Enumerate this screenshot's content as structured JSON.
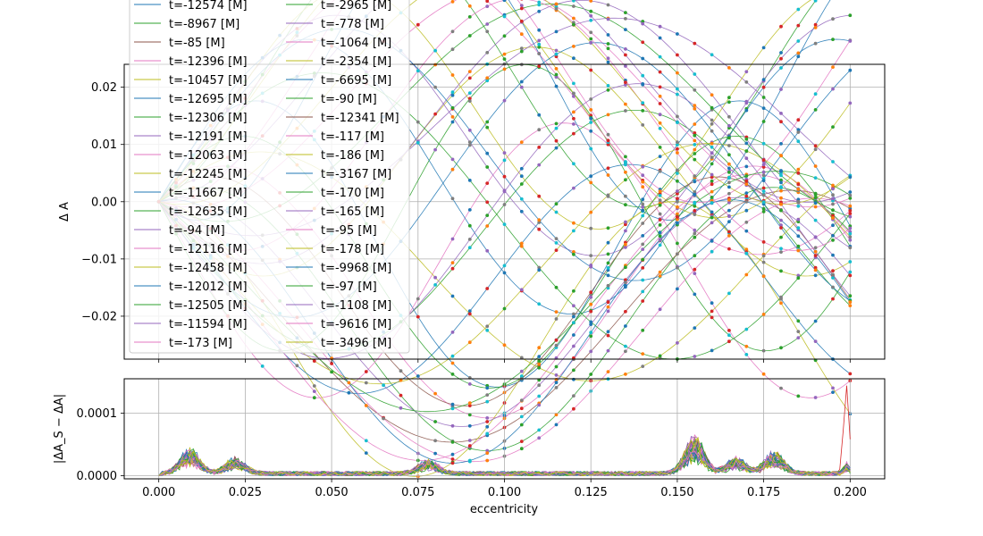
{
  "chart_data": [
    {
      "type": "line",
      "ylabel": "Δ A",
      "xlim": [
        -0.01,
        0.21
      ],
      "ylim": [
        -0.0275,
        0.024
      ],
      "xticks": [
        0.0,
        0.025,
        0.05,
        0.075,
        0.1,
        0.125,
        0.15,
        0.175,
        0.2
      ],
      "yticks": [
        -0.02,
        -0.01,
        0.0,
        0.01,
        0.02
      ],
      "ytick_labels": [
        "−0.02",
        "−0.01",
        "0.00",
        "0.01",
        "0.02"
      ],
      "grid": true,
      "legend_position": "upper-left",
      "legend_ncol": 2,
      "series_markers": "dots at sampled eccentricities",
      "series": [
        {
          "name": "t=-12574 [M]",
          "color": "#1f77b4",
          "amp": 0.025,
          "k": 45,
          "phase": 0.3
        },
        {
          "name": "t=-8967 [M]",
          "color": "#2ca02c",
          "amp": 0.023,
          "k": 38,
          "phase": 1.1
        },
        {
          "name": "t=-85 [M]",
          "color": "#8c564b",
          "amp": 0.022,
          "k": 32,
          "phase": 2.0
        },
        {
          "name": "t=-12396 [M]",
          "color": "#e377c2",
          "amp": 0.024,
          "k": 44,
          "phase": 2.7
        },
        {
          "name": "t=-10457 [M]",
          "color": "#bcbd22",
          "amp": 0.02,
          "k": 40,
          "phase": 3.5
        },
        {
          "name": "t=-12695 [M]",
          "color": "#1f77b4",
          "amp": 0.025,
          "k": 46,
          "phase": 4.2
        },
        {
          "name": "t=-12306 [M]",
          "color": "#2ca02c",
          "amp": 0.023,
          "k": 43,
          "phase": 5.0
        },
        {
          "name": "t=-12191 [M]",
          "color": "#9467bd",
          "amp": 0.021,
          "k": 42,
          "phase": 5.7
        },
        {
          "name": "t=-12063 [M]",
          "color": "#e377c2",
          "amp": 0.022,
          "k": 41,
          "phase": 0.8
        },
        {
          "name": "t=-12245 [M]",
          "color": "#bcbd22",
          "amp": 0.024,
          "k": 42,
          "phase": 1.6
        },
        {
          "name": "t=-11667 [M]",
          "color": "#1f77b4",
          "amp": 0.02,
          "k": 40,
          "phase": 2.4
        },
        {
          "name": "t=-12635 [M]",
          "color": "#2ca02c",
          "amp": 0.025,
          "k": 45,
          "phase": 3.1
        },
        {
          "name": "t=-94 [M]",
          "color": "#9467bd",
          "amp": 0.019,
          "k": 30,
          "phase": 3.9
        },
        {
          "name": "t=-12116 [M]",
          "color": "#e377c2",
          "amp": 0.023,
          "k": 41,
          "phase": 4.6
        },
        {
          "name": "t=-12458 [M]",
          "color": "#bcbd22",
          "amp": 0.021,
          "k": 44,
          "phase": 5.4
        },
        {
          "name": "t=-12012 [M]",
          "color": "#1f77b4",
          "amp": 0.024,
          "k": 41,
          "phase": 6.1
        },
        {
          "name": "t=-12505 [M]",
          "color": "#2ca02c",
          "amp": 0.022,
          "k": 44,
          "phase": 0.5
        },
        {
          "name": "t=-11594 [M]",
          "color": "#9467bd",
          "amp": 0.02,
          "k": 39,
          "phase": 1.3
        },
        {
          "name": "t=-173 [M]",
          "color": "#e377c2",
          "amp": 0.025,
          "k": 33,
          "phase": 2.2
        },
        {
          "name": "t=-2965 [M]",
          "color": "#2ca02c",
          "amp": 0.021,
          "k": 36,
          "phase": 2.9
        },
        {
          "name": "t=-778 [M]",
          "color": "#9467bd",
          "amp": 0.023,
          "k": 34,
          "phase": 3.7
        },
        {
          "name": "t=-1064 [M]",
          "color": "#e377c2",
          "amp": 0.019,
          "k": 35,
          "phase": 4.4
        },
        {
          "name": "t=-2354 [M]",
          "color": "#bcbd22",
          "amp": 0.024,
          "k": 36,
          "phase": 5.2
        },
        {
          "name": "t=-6695 [M]",
          "color": "#1f77b4",
          "amp": 0.022,
          "k": 37,
          "phase": 5.9
        },
        {
          "name": "t=-90 [M]",
          "color": "#2ca02c",
          "amp": 0.025,
          "k": 31,
          "phase": 0.1
        },
        {
          "name": "t=-12341 [M]",
          "color": "#8c564b",
          "amp": 0.02,
          "k": 43,
          "phase": 0.9
        },
        {
          "name": "t=-117 [M]",
          "color": "#e377c2",
          "amp": 0.023,
          "k": 32,
          "phase": 1.8
        },
        {
          "name": "t=-186 [M]",
          "color": "#bcbd22",
          "amp": 0.021,
          "k": 33,
          "phase": 2.6
        },
        {
          "name": "t=-3167 [M]",
          "color": "#1f77b4",
          "amp": 0.024,
          "k": 36,
          "phase": 3.3
        },
        {
          "name": "t=-170 [M]",
          "color": "#2ca02c",
          "amp": 0.019,
          "k": 33,
          "phase": 4.1
        },
        {
          "name": "t=-165 [M]",
          "color": "#9467bd",
          "amp": 0.022,
          "k": 33,
          "phase": 4.8
        },
        {
          "name": "t=-95 [M]",
          "color": "#e377c2",
          "amp": 0.025,
          "k": 31,
          "phase": 5.6
        },
        {
          "name": "t=-178 [M]",
          "color": "#bcbd22",
          "amp": 0.02,
          "k": 33,
          "phase": 0.6
        },
        {
          "name": "t=-9968 [M]",
          "color": "#1f77b4",
          "amp": 0.023,
          "k": 39,
          "phase": 1.4
        },
        {
          "name": "t=-97 [M]",
          "color": "#2ca02c",
          "amp": 0.021,
          "k": 31,
          "phase": 2.3
        },
        {
          "name": "t=-1108 [M]",
          "color": "#9467bd",
          "amp": 0.024,
          "k": 35,
          "phase": 3.0
        },
        {
          "name": "t=-9616 [M]",
          "color": "#e377c2",
          "amp": 0.022,
          "k": 39,
          "phase": 3.8
        },
        {
          "name": "t=-3496 [M]",
          "color": "#bcbd22",
          "amp": 0.02,
          "k": 36,
          "phase": 4.5
        }
      ]
    },
    {
      "type": "line",
      "xlabel": "eccentricity",
      "ylabel": "|ΔA_S − ΔA|",
      "xlim": [
        -0.01,
        0.21
      ],
      "ylim": [
        -5e-06,
        0.000155
      ],
      "xticks": [
        0.0,
        0.025,
        0.05,
        0.075,
        0.1,
        0.125,
        0.15,
        0.175,
        0.2
      ],
      "xtick_labels": [
        "0.000",
        "0.025",
        "0.050",
        "0.075",
        "0.100",
        "0.125",
        "0.150",
        "0.175",
        "0.200"
      ],
      "yticks": [
        0.0,
        0.0001
      ],
      "ytick_labels": [
        "0.0000",
        "0.0001"
      ],
      "grid": true,
      "noise_description": "small residuals near zero for every series, bumps near 0.009, 0.022, 0.078, 0.155, 0.167, 0.178 and a spike to about 0.000148 at 0.199"
    }
  ]
}
